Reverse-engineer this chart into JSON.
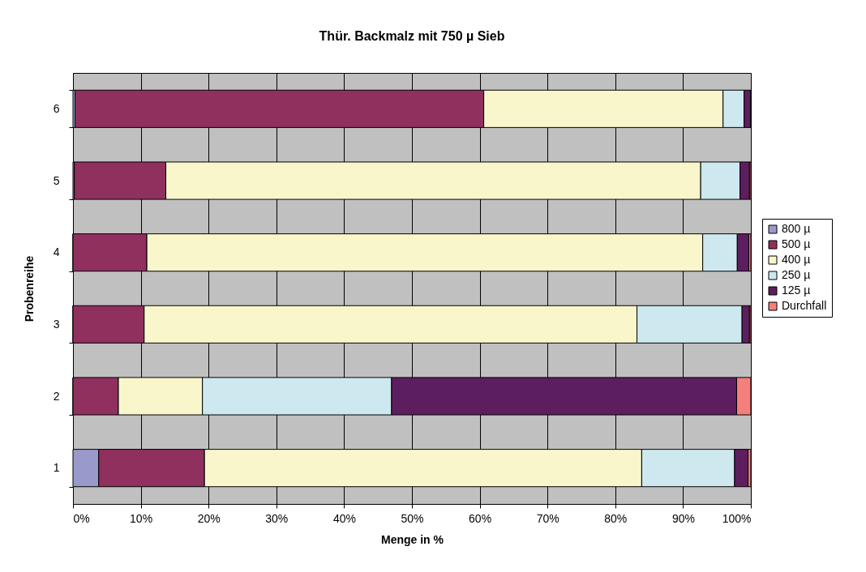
{
  "chart_data": {
    "type": "bar",
    "orientation": "horizontal",
    "stacked": true,
    "title": "Thür. Backmalz mit 750 µ Sieb",
    "xlabel": "Menge in %",
    "ylabel": "Probenreihe",
    "categories": [
      "6",
      "5",
      "4",
      "3",
      "2",
      "1"
    ],
    "series": [
      {
        "name": "800 µ",
        "color": "#9999cc",
        "values": [
          0.3,
          0.2,
          0,
          0,
          0,
          3.8
        ]
      },
      {
        "name": "500 µ",
        "color": "#90305f",
        "values": [
          60.3,
          13.5,
          10.9,
          10.5,
          6.7,
          15.6
        ]
      },
      {
        "name": "400 µ",
        "color": "#f9f6cc",
        "values": [
          35.3,
          78.9,
          82.0,
          72.7,
          12.4,
          64.5
        ]
      },
      {
        "name": "250 µ",
        "color": "#cde9ef",
        "values": [
          3.1,
          5.8,
          5.1,
          15.5,
          27.9,
          13.7
        ]
      },
      {
        "name": "125 µ",
        "color": "#5d1e5f",
        "values": [
          1.0,
          1.4,
          1.7,
          1.1,
          50.9,
          2.0
        ]
      },
      {
        "name": "Durchfall",
        "color": "#f47f7b",
        "values": [
          0,
          0.2,
          0.3,
          0.2,
          2.1,
          0.4
        ]
      }
    ],
    "xlim": [
      0,
      100
    ],
    "xticks": [
      {
        "value": 0,
        "label": "0%"
      },
      {
        "value": 10,
        "label": "10%"
      },
      {
        "value": 20,
        "label": "20%"
      },
      {
        "value": 30,
        "label": "30%"
      },
      {
        "value": 40,
        "label": "40%"
      },
      {
        "value": 50,
        "label": "50%"
      },
      {
        "value": 60,
        "label": "60%"
      },
      {
        "value": 70,
        "label": "70%"
      },
      {
        "value": 80,
        "label": "80%"
      },
      {
        "value": 90,
        "label": "90%"
      },
      {
        "value": 100,
        "label": "100%"
      }
    ],
    "grid": "x",
    "legend": "right"
  }
}
